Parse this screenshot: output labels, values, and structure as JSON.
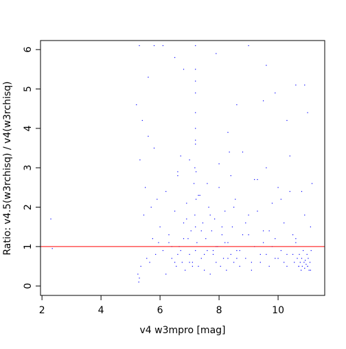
{
  "chart_data": {
    "type": "scatter",
    "xlabel": "v4 w3mpro [mag]",
    "ylabel": "Ratio: v4.5(w3rchisq) / v4(w3rchisq)",
    "xlim": [
      1.95,
      11.58
    ],
    "ylim": [
      -0.24,
      6.23
    ],
    "xticks": [
      2,
      4,
      6,
      8,
      10
    ],
    "yticks": [
      0,
      1,
      2,
      3,
      4,
      5,
      6
    ],
    "hline": 1,
    "hline_color": "#ff0000",
    "series": [
      {
        "name": "points",
        "color": "#0000ff",
        "x": [
          2.3,
          2.35,
          5.2,
          5.25,
          5.28,
          5.3,
          5.32,
          5.35,
          5.4,
          5.45,
          5.5,
          5.55,
          5.6,
          5.65,
          5.7,
          5.75,
          5.8,
          5.85,
          5.9,
          5.95,
          6.0,
          6.1,
          6.2,
          6.3,
          6.4,
          6.5,
          6.55,
          6.6,
          6.65,
          6.7,
          6.75,
          6.8,
          6.85,
          6.9,
          6.95,
          7.0,
          7.05,
          7.1,
          7.15,
          7.18,
          7.2,
          7.2,
          7.2,
          7.22,
          7.2,
          7.18,
          7.2,
          7.22,
          7.2,
          7.2,
          7.25,
          7.3,
          7.35,
          7.4,
          7.45,
          7.5,
          7.55,
          7.6,
          7.65,
          7.7,
          7.75,
          7.8,
          7.85,
          7.9,
          7.95,
          8.0,
          8.05,
          8.1,
          8.15,
          8.2,
          8.25,
          8.3,
          8.35,
          8.4,
          8.45,
          8.5,
          8.55,
          8.6,
          8.7,
          8.8,
          8.9,
          9.0,
          9.1,
          9.2,
          9.3,
          9.4,
          9.5,
          9.6,
          9.7,
          9.8,
          9.9,
          10.0,
          10.1,
          10.2,
          10.3,
          10.4,
          10.5,
          10.55,
          10.6,
          10.65,
          10.7,
          10.72,
          10.75,
          10.78,
          10.8,
          10.82,
          10.85,
          10.88,
          10.9,
          10.92,
          10.95,
          10.98,
          11.0,
          11.02,
          11.05,
          11.08,
          11.1,
          11.12,
          11.15,
          6.4,
          6.6,
          6.8,
          7.0,
          7.4,
          7.8,
          8.2,
          8.6,
          9.0,
          9.4,
          9.8,
          10.2,
          10.6,
          11.0,
          6.5,
          6.9,
          7.3,
          7.7,
          8.1,
          8.5,
          8.9,
          9.3,
          9.7,
          10.1,
          10.5,
          10.9,
          6.3,
          6.7,
          7.1,
          7.5,
          7.9,
          8.3,
          8.7,
          9.1,
          9.5,
          9.9,
          10.3,
          10.7,
          11.1,
          6.2,
          6.6,
          7.0,
          7.6,
          8.0,
          8.4,
          8.8,
          9.2,
          9.6,
          10.0,
          10.4,
          10.8,
          5.8,
          6.8,
          8.6,
          9.6,
          10.6,
          11.0,
          7.9,
          8.3,
          9.5,
          10.3,
          5.3,
          5.6,
          6.1,
          6.5,
          7.2,
          7.2,
          7.2,
          9.0,
          9.9,
          10.9
        ],
        "y": [
          1.7,
          0.95,
          4.6,
          0.3,
          0.1,
          0.2,
          3.2,
          0.5,
          4.2,
          1.8,
          2.5,
          0.7,
          3.8,
          0.6,
          2.0,
          1.2,
          3.5,
          0.8,
          2.2,
          1.1,
          1.5,
          0.9,
          2.4,
          1.3,
          0.7,
          1.9,
          0.5,
          2.8,
          1.0,
          3.3,
          0.6,
          1.6,
          0.4,
          2.1,
          1.2,
          0.8,
          1.4,
          0.6,
          2.6,
          3.0,
          3.6,
          4.0,
          4.4,
          2.2,
          5.2,
          1.8,
          6.1,
          2.9,
          1.5,
          0.9,
          1.1,
          0.5,
          2.3,
          0.7,
          1.6,
          0.4,
          1.2,
          0.9,
          2.0,
          0.3,
          1.4,
          0.8,
          1.7,
          0.6,
          1.0,
          2.5,
          0.5,
          1.3,
          0.7,
          1.9,
          0.4,
          1.1,
          3.4,
          0.8,
          1.5,
          0.6,
          2.2,
          0.9,
          0.5,
          1.3,
          0.7,
          1.8,
          0.4,
          1.0,
          2.7,
          0.6,
          1.4,
          0.8,
          0.5,
          2.1,
          1.2,
          0.7,
          0.9,
          1.6,
          0.5,
          2.4,
          0.8,
          0.6,
          1.1,
          0.7,
          0.5,
          0.8,
          0.6,
          0.4,
          0.7,
          0.5,
          0.9,
          0.6,
          0.45,
          0.65,
          0.55,
          0.8,
          0.5,
          0.7,
          0.4,
          0.6,
          1.5,
          0.9,
          2.6,
          1.0,
          0.8,
          1.2,
          0.6,
          1.4,
          0.9,
          1.1,
          0.7,
          1.3,
          0.8,
          1.0,
          0.6,
          1.2,
          0.5,
          0.6,
          1.7,
          2.3,
          1.8,
          1.5,
          2.0,
          1.6,
          1.9,
          1.4,
          2.2,
          1.3,
          1.8,
          1.1,
          0.9,
          0.5,
          0.8,
          1.0,
          0.7,
          0.9,
          0.6,
          1.1,
          0.7,
          0.8,
          0.5,
          0.4,
          0.3,
          2.9,
          3.2,
          2.6,
          3.1,
          2.8,
          3.4,
          2.7,
          3.0,
          2.5,
          3.3,
          2.4,
          6.1,
          5.5,
          4.6,
          5.6,
          5.1,
          4.4,
          5.9,
          3.9,
          4.7,
          4.2,
          6.1,
          5.3,
          6.1,
          5.8,
          3.7,
          4.9,
          5.5,
          6.1,
          4.9,
          5.1
        ]
      }
    ]
  }
}
